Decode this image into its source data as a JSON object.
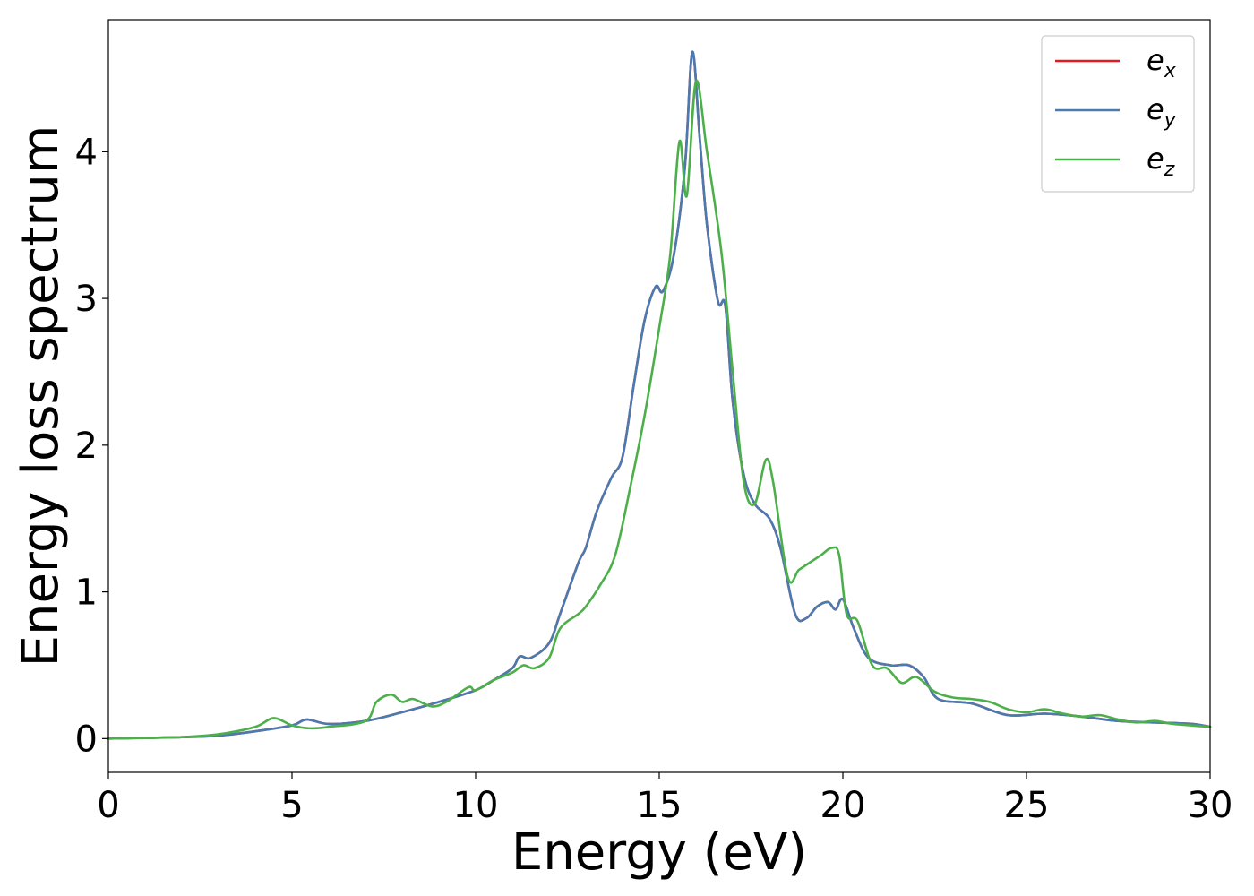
{
  "chart_data": {
    "type": "line",
    "title": "",
    "xlabel": "Energy (eV)",
    "ylabel": "Energy loss spectrum",
    "xlim": [
      0,
      30
    ],
    "ylim": [
      -0.23,
      4.9
    ],
    "xticks": [
      0,
      5,
      10,
      15,
      20,
      25,
      30
    ],
    "yticks": [
      0,
      1,
      2,
      3,
      4
    ],
    "grid": false,
    "legend_position": "top-right",
    "series": [
      {
        "name": "e_x",
        "label_base": "e",
        "label_sub": "x",
        "color": "#e41a1c",
        "x": [
          0,
          1,
          2,
          3,
          4,
          5,
          5.4,
          6,
          7,
          8,
          9,
          10,
          10.5,
          11,
          11.2,
          11.5,
          12,
          12.3,
          12.8,
          13,
          13.3,
          13.7,
          14,
          14.3,
          14.6,
          14.9,
          15.1,
          15.4,
          15.7,
          15.9,
          16.1,
          16.3,
          16.6,
          16.8,
          17,
          17.3,
          17.6,
          18,
          18.3,
          18.7,
          19,
          19.3,
          19.6,
          19.8,
          20,
          20.3,
          20.7,
          21.3,
          21.8,
          22.2,
          22.6,
          23.5,
          24.5,
          25.5,
          26.5,
          27.5,
          28.5,
          29.5,
          30
        ],
        "y": [
          0,
          0.005,
          0.01,
          0.02,
          0.05,
          0.09,
          0.13,
          0.1,
          0.12,
          0.18,
          0.25,
          0.33,
          0.4,
          0.48,
          0.56,
          0.55,
          0.65,
          0.85,
          1.2,
          1.3,
          1.55,
          1.78,
          1.92,
          2.4,
          2.85,
          3.08,
          3.05,
          3.3,
          3.9,
          4.68,
          4.1,
          3.5,
          2.98,
          2.95,
          2.3,
          1.8,
          1.6,
          1.5,
          1.3,
          0.85,
          0.82,
          0.9,
          0.93,
          0.88,
          0.95,
          0.75,
          0.55,
          0.5,
          0.5,
          0.42,
          0.27,
          0.24,
          0.16,
          0.17,
          0.15,
          0.12,
          0.11,
          0.1,
          0.08
        ]
      },
      {
        "name": "e_y",
        "label_base": "e",
        "label_sub": "y",
        "color": "#4a7bb0",
        "x": [
          0,
          1,
          2,
          3,
          4,
          5,
          5.4,
          6,
          7,
          8,
          9,
          10,
          10.5,
          11,
          11.2,
          11.5,
          12,
          12.3,
          12.8,
          13,
          13.3,
          13.7,
          14,
          14.3,
          14.6,
          14.9,
          15.1,
          15.4,
          15.7,
          15.9,
          16.1,
          16.3,
          16.6,
          16.8,
          17,
          17.3,
          17.6,
          18,
          18.3,
          18.7,
          19,
          19.3,
          19.6,
          19.8,
          20,
          20.3,
          20.7,
          21.3,
          21.8,
          22.2,
          22.6,
          23.5,
          24.5,
          25.5,
          26.5,
          27.5,
          28.5,
          29.5,
          30
        ],
        "y": [
          0,
          0.005,
          0.01,
          0.02,
          0.05,
          0.09,
          0.13,
          0.1,
          0.12,
          0.18,
          0.25,
          0.33,
          0.4,
          0.48,
          0.56,
          0.55,
          0.65,
          0.85,
          1.2,
          1.3,
          1.55,
          1.78,
          1.92,
          2.4,
          2.85,
          3.08,
          3.05,
          3.3,
          3.9,
          4.68,
          4.1,
          3.5,
          2.98,
          2.95,
          2.3,
          1.8,
          1.6,
          1.5,
          1.3,
          0.85,
          0.82,
          0.9,
          0.93,
          0.88,
          0.95,
          0.75,
          0.55,
          0.5,
          0.5,
          0.42,
          0.27,
          0.24,
          0.16,
          0.17,
          0.15,
          0.12,
          0.11,
          0.1,
          0.08
        ]
      },
      {
        "name": "e_z",
        "label_base": "e",
        "label_sub": "z",
        "color": "#4daf4a",
        "x": [
          0,
          1,
          2,
          3,
          4,
          4.5,
          5,
          5.5,
          6,
          7,
          7.3,
          7.7,
          8,
          8.3,
          8.8,
          9.2,
          9.8,
          10,
          10.5,
          11,
          11.3,
          11.6,
          12,
          12.3,
          12.8,
          13,
          13.4,
          13.8,
          14.2,
          14.6,
          15,
          15.3,
          15.55,
          15.75,
          16,
          16.3,
          16.7,
          17,
          17.3,
          17.6,
          17.9,
          18.1,
          18.5,
          18.8,
          19.1,
          19.4,
          19.7,
          19.9,
          20.1,
          20.4,
          20.8,
          21.2,
          21.6,
          22,
          22.5,
          23,
          23.5,
          24,
          24.5,
          25,
          25.5,
          26,
          26.5,
          27,
          27.5,
          28,
          28.5,
          29,
          30
        ],
        "y": [
          0,
          0.005,
          0.01,
          0.03,
          0.08,
          0.14,
          0.09,
          0.07,
          0.08,
          0.12,
          0.25,
          0.3,
          0.25,
          0.27,
          0.22,
          0.25,
          0.35,
          0.33,
          0.4,
          0.45,
          0.5,
          0.48,
          0.55,
          0.75,
          0.85,
          0.9,
          1.05,
          1.25,
          1.7,
          2.2,
          2.8,
          3.3,
          4.07,
          3.7,
          4.48,
          4.0,
          3.3,
          2.5,
          1.75,
          1.6,
          1.9,
          1.75,
          1.1,
          1.15,
          1.2,
          1.25,
          1.3,
          1.25,
          0.85,
          0.8,
          0.5,
          0.48,
          0.38,
          0.42,
          0.32,
          0.28,
          0.27,
          0.25,
          0.2,
          0.18,
          0.2,
          0.17,
          0.15,
          0.16,
          0.13,
          0.11,
          0.12,
          0.1,
          0.08
        ]
      }
    ]
  }
}
